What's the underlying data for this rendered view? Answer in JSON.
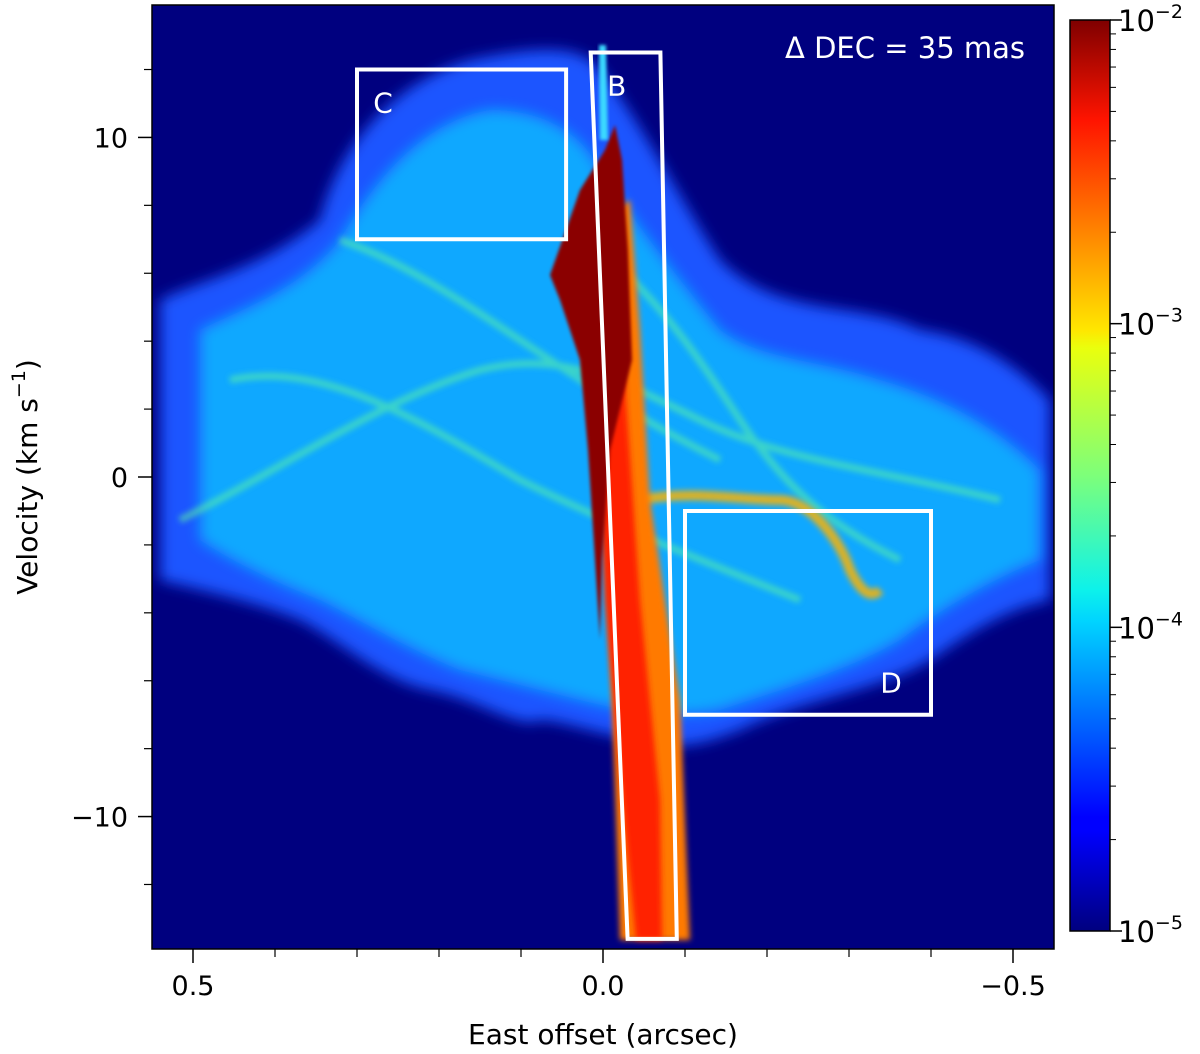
{
  "chart_data": {
    "type": "heatmap",
    "title": "",
    "xlabel": "East offset (arcsec)",
    "ylabel": "Velocity (km s",
    "ylabel_sup": "−1",
    "ylabel_close": ")",
    "xlim": [
      0.5,
      -0.5
    ],
    "ylim": [
      -14,
      14
    ],
    "xlim_data": [
      0.55,
      -0.55
    ],
    "ylim_data": [
      -13.9,
      13.9
    ],
    "x_major_ticks": [
      0.5,
      0.0,
      -0.5
    ],
    "x_major_labels": [
      "0.5",
      "0.0",
      "−0.5"
    ],
    "x_minor_ticks": [
      0.4,
      0.3,
      0.2,
      0.1,
      -0.1,
      -0.2,
      -0.3,
      -0.4
    ],
    "y_major_ticks": [
      10,
      0,
      -10
    ],
    "y_major_labels": [
      "10",
      "0",
      "−10"
    ],
    "y_minor_ticks": [
      12,
      8,
      6,
      4,
      2,
      -2,
      -4,
      -6,
      -8,
      -12
    ],
    "annotation": "Δ DEC = 35 mas",
    "colorbar": {
      "scale": "log",
      "range": [
        1e-05,
        0.01
      ],
      "tick_values": [
        0.01,
        0.001,
        0.0001,
        1e-05
      ],
      "tick_base": "10",
      "tick_exponents": [
        "−2",
        "−3",
        "−4",
        "−5"
      ],
      "colormap": "jet"
    },
    "regions": [
      {
        "label": "B",
        "corners": [
          [
            0.015,
            12.5
          ],
          [
            -0.07,
            12.5
          ],
          [
            -0.09,
            -13.6
          ],
          [
            -0.03,
            -13.6
          ]
        ]
      },
      {
        "label": "C",
        "corners": [
          [
            0.3,
            12.0
          ],
          [
            0.045,
            12.0
          ],
          [
            0.045,
            7.0
          ],
          [
            0.3,
            7.0
          ]
        ]
      },
      {
        "label": "D",
        "corners": [
          [
            -0.1,
            -1.0
          ],
          [
            -0.4,
            -1.0
          ],
          [
            -0.4,
            -7.0
          ],
          [
            -0.1,
            -7.0
          ]
        ]
      }
    ],
    "emission": {
      "background_level": 1e-05,
      "diffuse_cloud_level": 0.0001,
      "spine": [
        {
          "x": 0.05,
          "y": 6.5
        },
        {
          "x": 0.02,
          "y": 4.0
        },
        {
          "x": 0.005,
          "y": 0.0
        },
        {
          "x": -0.015,
          "y": -4.0
        },
        {
          "x": -0.04,
          "y": -8.0
        },
        {
          "x": -0.06,
          "y": -13.5
        }
      ],
      "feature_levels": [
        {
          "region": "spine-core",
          "level": 0.01
        },
        {
          "region": "spine-outer",
          "level": 0.003
        },
        {
          "region": "D-ridge",
          "level": 0.002
        },
        {
          "region": "cloud-filaments",
          "level": 0.0003
        }
      ]
    }
  }
}
